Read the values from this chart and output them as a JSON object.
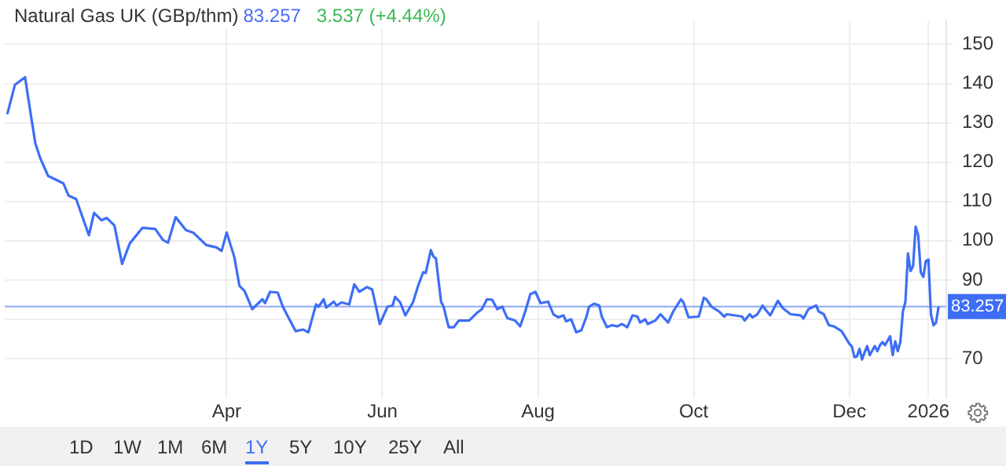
{
  "chart_data": {
    "type": "line",
    "title": "Natural Gas UK (GBp/thm)",
    "annotations": [
      "83.257",
      "3.537 (+4.44%)",
      "1D",
      "1W",
      "1M",
      "6M",
      "1Y",
      "5Y",
      "10Y",
      "25Y",
      "All"
    ],
    "xlim": [
      "2025-01-04",
      "2026-01-08"
    ],
    "xticks": [
      {
        "value": "2025-04-01",
        "label": "Apr"
      },
      {
        "value": "2025-06-01",
        "label": "Jun"
      },
      {
        "value": "2025-08-01",
        "label": "Aug"
      },
      {
        "value": "2025-10-01",
        "label": "Oct"
      },
      {
        "value": "2025-12-01",
        "label": "Dec"
      },
      {
        "value": "2026-01-01",
        "label": "2026"
      }
    ],
    "ylim": [
      60,
      156
    ],
    "yticks": [
      70,
      {
        "value": 80,
        "label": null
      },
      90,
      100,
      110,
      120,
      130,
      140,
      150
    ],
    "grid": true,
    "legend": false,
    "marker": "none",
    "line_style": "solid",
    "ref_lines": [
      {
        "axis": "y",
        "value": 83.257,
        "label": "83.257",
        "color": "#8fa8f5"
      }
    ],
    "series": [
      {
        "color": "#3d6ef5",
        "x": [
          "2025-01-05",
          "2025-01-08",
          "2025-01-12",
          "2025-01-13",
          "2025-01-16",
          "2025-01-18",
          "2025-01-21",
          "2025-01-27",
          "2025-01-29",
          "2025-02-01",
          "2025-02-06",
          "2025-02-08",
          "2025-02-11",
          "2025-02-13",
          "2025-02-16",
          "2025-02-19",
          "2025-02-22",
          "2025-02-27",
          "2025-03-04",
          "2025-03-07",
          "2025-03-09",
          "2025-03-12",
          "2025-03-16",
          "2025-03-19",
          "2025-03-24",
          "2025-03-28",
          "2025-03-30",
          "2025-04-01",
          "2025-04-04",
          "2025-04-06",
          "2025-04-08",
          "2025-04-11",
          "2025-04-15",
          "2025-04-16",
          "2025-04-18",
          "2025-04-21",
          "2025-04-23",
          "2025-04-25",
          "2025-04-28",
          "2025-05-01",
          "2025-05-03",
          "2025-05-06",
          "2025-05-07",
          "2025-05-09",
          "2025-05-10",
          "2025-05-13",
          "2025-05-14",
          "2025-05-16",
          "2025-05-19",
          "2025-05-21",
          "2025-05-23",
          "2025-05-26",
          "2025-05-28",
          "2025-05-31",
          "2025-06-03",
          "2025-06-05",
          "2025-06-06",
          "2025-06-08",
          "2025-06-10",
          "2025-06-13",
          "2025-06-15",
          "2025-06-17",
          "2025-06-18",
          "2025-06-20",
          "2025-06-21",
          "2025-06-22",
          "2025-06-24",
          "2025-06-25",
          "2025-06-27",
          "2025-06-29",
          "2025-07-01",
          "2025-07-05",
          "2025-07-08",
          "2025-07-10",
          "2025-07-12",
          "2025-07-14",
          "2025-07-16",
          "2025-07-18",
          "2025-07-20",
          "2025-07-23",
          "2025-07-25",
          "2025-07-27",
          "2025-07-29",
          "2025-07-31",
          "2025-08-02",
          "2025-08-05",
          "2025-08-07",
          "2025-08-09",
          "2025-08-11",
          "2025-08-12",
          "2025-08-14",
          "2025-08-16",
          "2025-08-18",
          "2025-08-20",
          "2025-08-21",
          "2025-08-23",
          "2025-08-25",
          "2025-08-26",
          "2025-08-28",
          "2025-08-30",
          "2025-09-01",
          "2025-09-03",
          "2025-09-05",
          "2025-09-07",
          "2025-09-09",
          "2025-09-10",
          "2025-09-12",
          "2025-09-13",
          "2025-09-16",
          "2025-09-18",
          "2025-09-21",
          "2025-09-23",
          "2025-09-26",
          "2025-09-27",
          "2025-09-29",
          "2025-10-03",
          "2025-10-05",
          "2025-10-06",
          "2025-10-08",
          "2025-10-11",
          "2025-10-13",
          "2025-10-14",
          "2025-10-17",
          "2025-10-20",
          "2025-10-21",
          "2025-10-23",
          "2025-10-24",
          "2025-10-26",
          "2025-10-28",
          "2025-10-29",
          "2025-10-31",
          "2025-11-03",
          "2025-11-05",
          "2025-11-08",
          "2025-11-12",
          "2025-11-13",
          "2025-11-15",
          "2025-11-18",
          "2025-11-19",
          "2025-11-21",
          "2025-11-23",
          "2025-11-25",
          "2025-11-28",
          "2025-12-01",
          "2025-12-02",
          "2025-12-03",
          "2025-12-04",
          "2025-12-05",
          "2025-12-06",
          "2025-12-07",
          "2025-12-08",
          "2025-12-09",
          "2025-12-11",
          "2025-12-12",
          "2025-12-13",
          "2025-12-14",
          "2025-12-15",
          "2025-12-17",
          "2025-12-18",
          "2025-12-19",
          "2025-12-20",
          "2025-12-21",
          "2025-12-22",
          "2025-12-23",
          "2025-12-24",
          "2025-12-25",
          "2025-12-26",
          "2025-12-27",
          "2025-12-28",
          "2025-12-29",
          "2025-12-30",
          "2025-12-31",
          "2026-01-01",
          "2026-01-02",
          "2026-01-03",
          "2026-01-04",
          "2026-01-05"
        ],
        "values": [
          132.2,
          139.7,
          141.6,
          137.2,
          124.8,
          120.9,
          116.5,
          114.6,
          111.5,
          110.6,
          101.4,
          107.1,
          105.2,
          105.8,
          103.9,
          94.1,
          99.3,
          103.3,
          103.0,
          100.2,
          99.5,
          106.0,
          102.7,
          102.0,
          98.9,
          98.3,
          97.4,
          102.1,
          95.8,
          88.5,
          87.2,
          82.6,
          85.1,
          84.1,
          87.0,
          86.8,
          83.2,
          80.7,
          77.0,
          77.4,
          76.7,
          83.8,
          83.2,
          85.1,
          83.0,
          84.5,
          83.5,
          84.3,
          83.8,
          88.9,
          87.0,
          88.2,
          87.6,
          78.8,
          83.2,
          83.5,
          85.7,
          84.3,
          81.0,
          84.3,
          88.5,
          92.0,
          91.8,
          97.6,
          96.0,
          95.5,
          84.5,
          83.2,
          78.0,
          78.0,
          79.7,
          79.7,
          81.6,
          82.6,
          85.1,
          85.0,
          82.6,
          83.2,
          80.3,
          79.7,
          78.2,
          82.0,
          86.4,
          87.0,
          84.1,
          84.5,
          81.3,
          80.5,
          81.0,
          79.5,
          80.0,
          76.7,
          77.2,
          80.7,
          83.2,
          84.0,
          83.5,
          80.7,
          78.0,
          78.5,
          78.2,
          78.8,
          78.0,
          81.0,
          80.7,
          79.2,
          80.0,
          78.8,
          79.7,
          81.3,
          79.2,
          82.0,
          85.1,
          84.3,
          80.5,
          80.7,
          85.5,
          85.1,
          83.2,
          82.0,
          80.7,
          81.3,
          81.0,
          80.7,
          79.7,
          81.3,
          80.5,
          81.3,
          83.5,
          82.6,
          81.0,
          84.7,
          82.8,
          81.3,
          81.0,
          80.2,
          82.6,
          83.5,
          82.0,
          81.3,
          78.5,
          78.2,
          77.0,
          73.8,
          73.1,
          70.4,
          70.6,
          72.5,
          69.8,
          71.6,
          73.2,
          70.9,
          73.2,
          71.9,
          73.4,
          74.2,
          73.4,
          75.7,
          70.9,
          74.4,
          71.9,
          74.2,
          82.0,
          84.5,
          96.8,
          92.3,
          93.6,
          103.6,
          101.4,
          92.0,
          90.8,
          94.8,
          95.2,
          81.3,
          78.5,
          79.2,
          83.3
        ]
      }
    ]
  }
}
